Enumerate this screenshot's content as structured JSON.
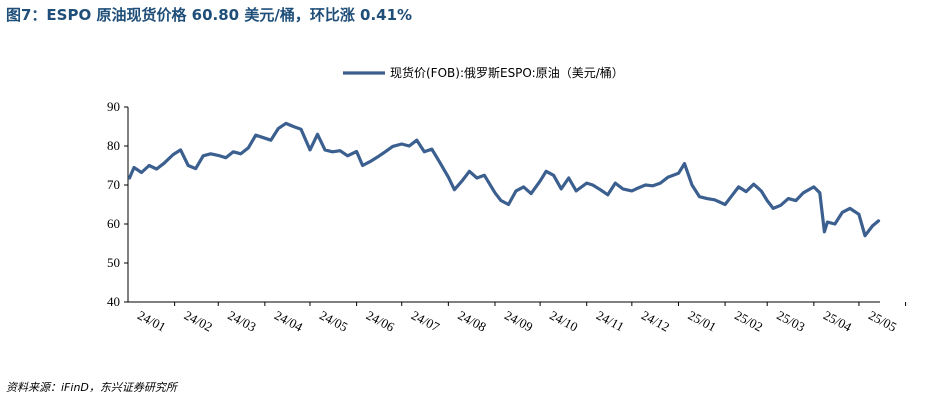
{
  "figure": {
    "title": "图7：ESPO 原油现货价格 60.80 美元/桶，环比涨 0.41%",
    "source": "资料来源：iFinD，东兴证券研究所"
  },
  "colors": {
    "title": "#1f4e79",
    "series": "#3b5f8f",
    "axis": "#000000"
  },
  "chart_data": {
    "type": "line",
    "title": "",
    "xlabel": "",
    "ylabel": "",
    "ylim": [
      40,
      90
    ],
    "yticks": [
      40,
      50,
      60,
      70,
      80,
      90
    ],
    "grid": false,
    "legend_position": "top-center",
    "xticks": [
      "24/01",
      "24/02",
      "24/03",
      "24/04",
      "24/05",
      "24/06",
      "24/07",
      "24/08",
      "24/09",
      "24/10",
      "24/11",
      "24/12",
      "25/01",
      "25/02",
      "25/03",
      "25/04",
      "25/05"
    ],
    "series": [
      {
        "name": "现货价(FOB):俄罗斯ESPO:原油（美元/桶）",
        "x": [
          "2024-01-02",
          "2024-01-05",
          "2024-01-10",
          "2024-01-15",
          "2024-01-20",
          "2024-01-25",
          "2024-01-31",
          "2024-02-05",
          "2024-02-10",
          "2024-02-15",
          "2024-02-20",
          "2024-02-25",
          "2024-03-01",
          "2024-03-06",
          "2024-03-11",
          "2024-03-16",
          "2024-03-21",
          "2024-03-26",
          "2024-04-01",
          "2024-04-05",
          "2024-04-10",
          "2024-04-15",
          "2024-04-20",
          "2024-04-25",
          "2024-05-01",
          "2024-05-06",
          "2024-05-11",
          "2024-05-16",
          "2024-05-21",
          "2024-05-26",
          "2024-06-01",
          "2024-06-05",
          "2024-06-10",
          "2024-06-15",
          "2024-06-20",
          "2024-06-25",
          "2024-07-01",
          "2024-07-06",
          "2024-07-11",
          "2024-07-16",
          "2024-07-21",
          "2024-07-26",
          "2024-08-01",
          "2024-08-05",
          "2024-08-10",
          "2024-08-15",
          "2024-08-20",
          "2024-08-25",
          "2024-09-01",
          "2024-09-05",
          "2024-09-10",
          "2024-09-15",
          "2024-09-20",
          "2024-09-25",
          "2024-10-01",
          "2024-10-05",
          "2024-10-10",
          "2024-10-15",
          "2024-10-20",
          "2024-10-25",
          "2024-11-01",
          "2024-11-05",
          "2024-11-10",
          "2024-11-15",
          "2024-11-20",
          "2024-11-25",
          "2024-12-01",
          "2024-12-05",
          "2024-12-10",
          "2024-12-15",
          "2024-12-20",
          "2024-12-25",
          "2025-01-01",
          "2025-01-05",
          "2025-01-10",
          "2025-01-15",
          "2025-01-20",
          "2025-01-25",
          "2025-02-01",
          "2025-02-05",
          "2025-02-10",
          "2025-02-15",
          "2025-02-20",
          "2025-02-25",
          "2025-03-01",
          "2025-03-05",
          "2025-03-10",
          "2025-03-15",
          "2025-03-20",
          "2025-03-25",
          "2025-04-01",
          "2025-04-05",
          "2025-04-08",
          "2025-04-10",
          "2025-04-15",
          "2025-04-20",
          "2025-04-25",
          "2025-05-01",
          "2025-05-05",
          "2025-05-10",
          "2025-05-14"
        ],
        "values": [
          71.8,
          74.5,
          73.2,
          75.0,
          74.1,
          75.6,
          77.8,
          79.0,
          75.0,
          74.2,
          77.5,
          78.0,
          77.6,
          77.0,
          78.5,
          78.0,
          79.5,
          82.8,
          82.0,
          81.5,
          84.5,
          85.8,
          85.0,
          84.3,
          79.0,
          83.0,
          79.0,
          78.5,
          78.8,
          77.5,
          78.6,
          75.0,
          76.0,
          77.2,
          78.5,
          79.9,
          80.5,
          80.0,
          81.5,
          78.5,
          79.2,
          76.0,
          72.0,
          68.8,
          71.0,
          73.5,
          71.8,
          72.5,
          68.0,
          66.0,
          65.0,
          68.5,
          69.5,
          67.8,
          71.0,
          73.5,
          72.5,
          69.0,
          71.8,
          68.5,
          70.5,
          70.0,
          68.8,
          67.5,
          70.5,
          69.0,
          68.5,
          69.2,
          70.0,
          69.8,
          70.5,
          72.0,
          73.0,
          75.5,
          70.0,
          67.0,
          66.5,
          66.2,
          65.0,
          67.0,
          69.5,
          68.3,
          70.2,
          68.5,
          66.0,
          64.0,
          64.8,
          66.5,
          66.0,
          68.0,
          69.5,
          68.0,
          58.0,
          60.5,
          60.0,
          63.0,
          64.0,
          62.5,
          57.0,
          59.5,
          60.8
        ]
      }
    ]
  }
}
